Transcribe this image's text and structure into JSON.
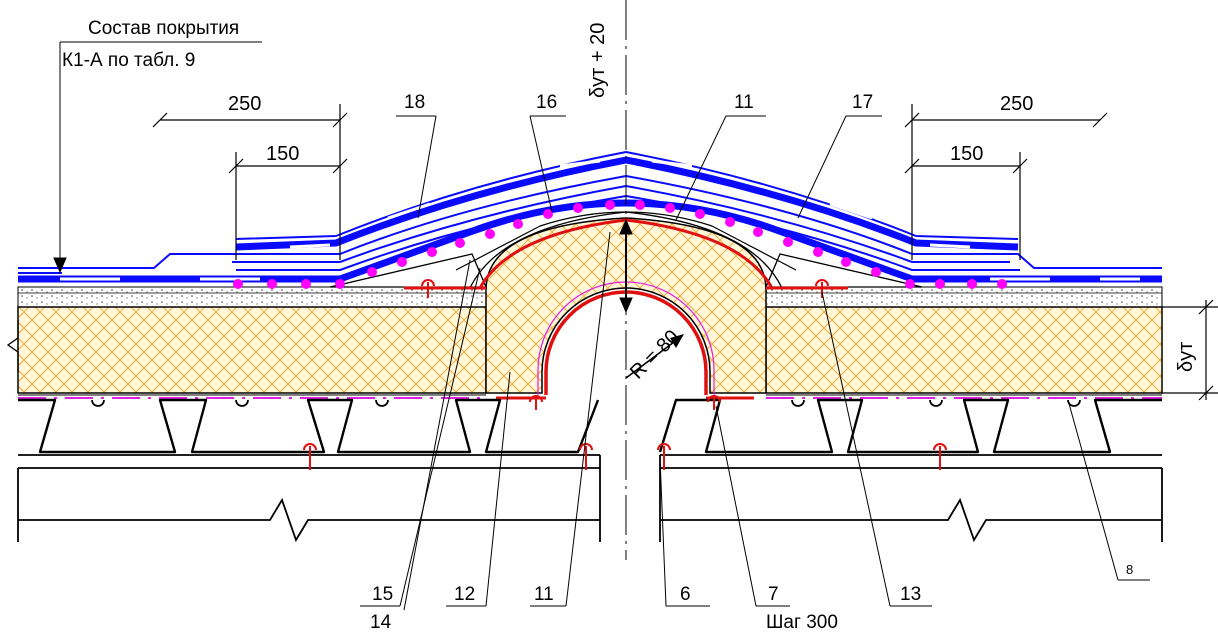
{
  "composition_note": {
    "line1": "Состав покрытия",
    "line2": "К1-А по табл. 9"
  },
  "dimensions": {
    "left_250": "250",
    "left_150": "150",
    "right_250": "250",
    "right_150": "150",
    "delta_top": "δут + 20",
    "delta_right": "δут",
    "radius": "R = 80",
    "step": "Шаг 300"
  },
  "callouts": {
    "c18": "18",
    "c16": "16",
    "c11_top": "11",
    "c17": "17",
    "c15": "15",
    "c14": "14",
    "c12": "12",
    "c11_bottom": "11",
    "c6": "6",
    "c7": "7",
    "c13": "13",
    "c8": "8"
  },
  "colors": {
    "membrane": "#0a0aff",
    "insulation_hatch": "#f0b040",
    "insulation_fill": "#fff6d8",
    "vapor_barrier": "#e020e0",
    "fastener": "#e01010",
    "outline": "#000000"
  }
}
